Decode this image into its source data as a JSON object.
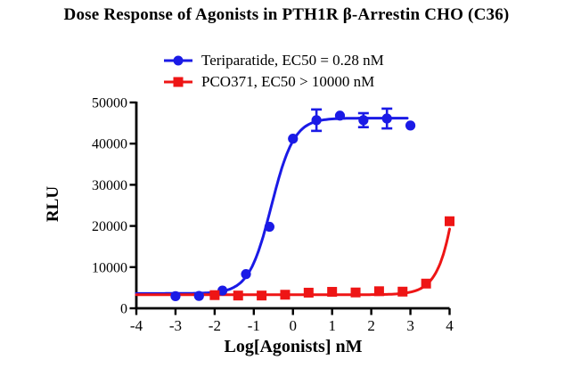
{
  "title": "Dose Response of Agonists in PTH1R β-Arrestin CHO (C36)",
  "legend": {
    "items": [
      {
        "label": "Teriparatide, EC50 = 0.28 nM",
        "color": "#1a1ae6",
        "marker": "circle"
      },
      {
        "label": "PCO371, EC50 > 10000 nM",
        "color": "#ee1515",
        "marker": "square"
      }
    ]
  },
  "chart_data": {
    "type": "line",
    "title": "Dose Response of Agonists in PTH1R β-Arrestin CHO (C36)",
    "xlabel": "Log[Agonists] nM",
    "ylabel": "RLU",
    "xlim": [
      -4,
      4
    ],
    "ylim": [
      0,
      50000
    ],
    "xticks": [
      -4,
      -3,
      -2,
      -1,
      0,
      1,
      2,
      3,
      4
    ],
    "yticks": [
      0,
      10000,
      20000,
      30000,
      40000,
      50000
    ],
    "grid": false,
    "legend_position": "top-center",
    "axis_color": "#000000",
    "series": [
      {
        "name": "Teriparatide, EC50 = 0.28 nM",
        "color": "#1a1ae6",
        "marker": "circle",
        "x": [
          -3,
          -2.4,
          -1.8,
          -1.2,
          -0.6,
          0,
          0.6,
          1.2,
          1.8,
          2.4,
          3
        ],
        "y": [
          2950,
          3000,
          4300,
          8300,
          19800,
          41200,
          45700,
          46800,
          45700,
          46100,
          44400
        ],
        "yerr": [
          0,
          0,
          0,
          0,
          0,
          0,
          2600,
          0,
          1700,
          2400,
          0
        ],
        "fit": {
          "bottom": 3600,
          "top": 46200,
          "logec50": -0.55,
          "hill": 1.5,
          "curve_x_range": [
            -4,
            2.95
          ]
        }
      },
      {
        "name": "PCO371, EC50 > 10000 nM",
        "color": "#ee1515",
        "marker": "square",
        "x": [
          -2,
          -1.4,
          -0.8,
          -0.2,
          0.4,
          1,
          1.6,
          2.2,
          2.8,
          3.4,
          4
        ],
        "y": [
          3200,
          3100,
          3100,
          3300,
          3800,
          4000,
          3850,
          4150,
          4050,
          6000,
          21150
        ],
        "yerr": [
          0,
          0,
          0,
          0,
          0,
          0,
          0,
          0,
          0,
          0,
          0
        ],
        "fit": {
          "bottom": 3300,
          "top": 150000,
          "logec50": 4.63,
          "hill": 1.45,
          "curve_x_range": [
            -4,
            4.01
          ]
        }
      }
    ]
  }
}
